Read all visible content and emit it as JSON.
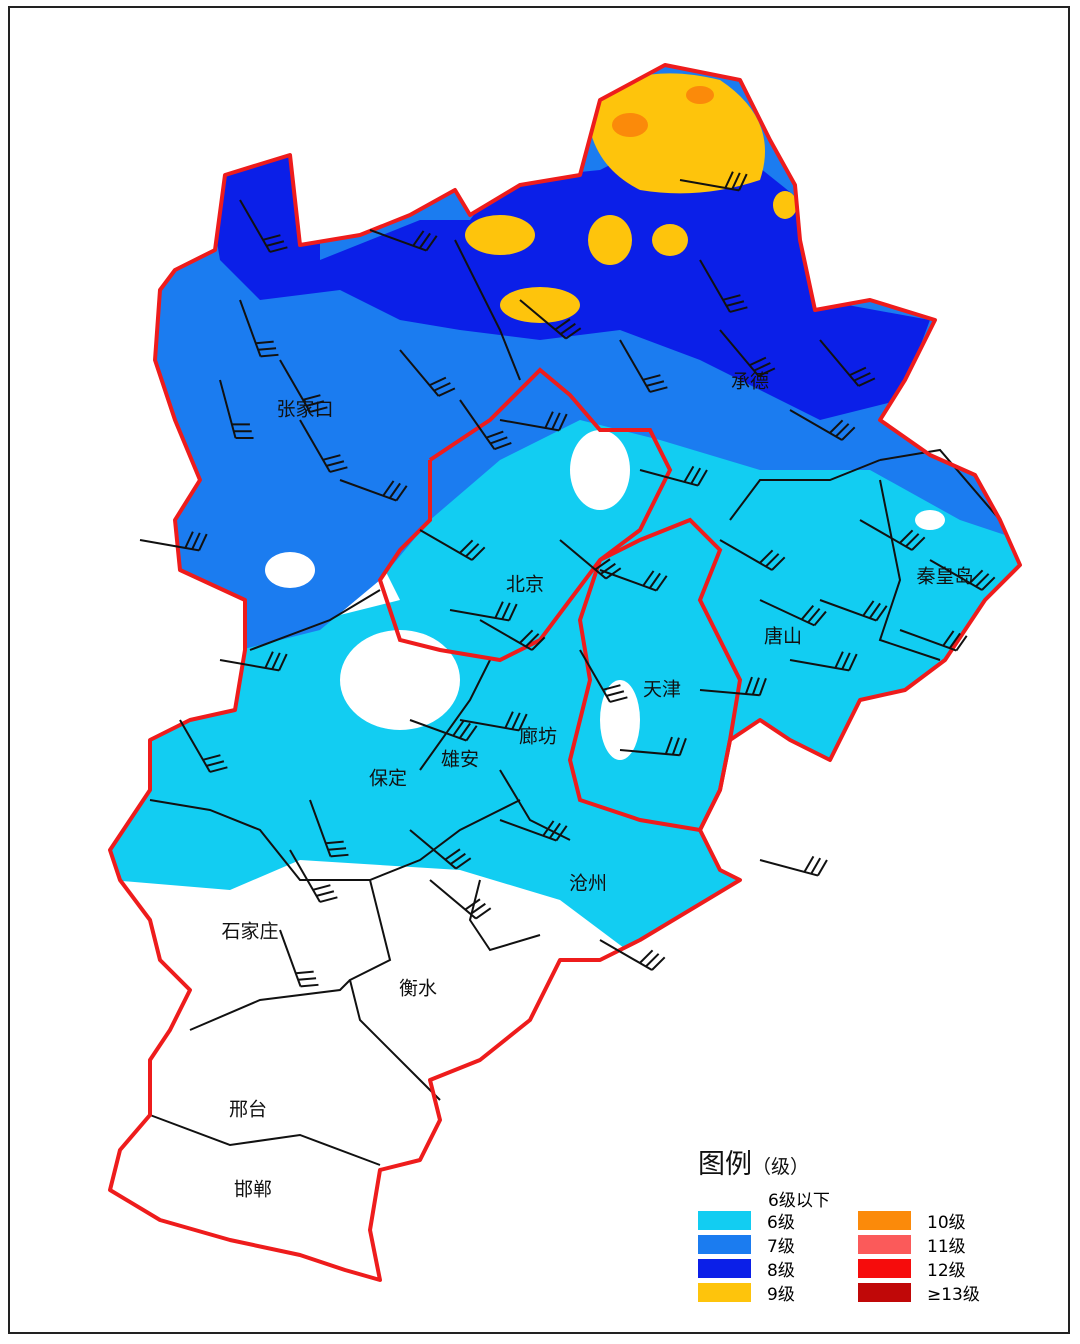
{
  "map": {
    "cities": [
      {
        "name": "张家口"
      },
      {
        "name": "承德"
      },
      {
        "name": "北京"
      },
      {
        "name": "秦皇岛"
      },
      {
        "name": "唐山"
      },
      {
        "name": "天津"
      },
      {
        "name": "廊坊"
      },
      {
        "name": "雄安"
      },
      {
        "name": "保定"
      },
      {
        "name": "沧州"
      },
      {
        "name": "石家庄"
      },
      {
        "name": "衡水"
      },
      {
        "name": "邢台"
      },
      {
        "name": "邯郸"
      }
    ],
    "boundary_color": "#ee1c1c"
  },
  "legend": {
    "title": "图例",
    "unit": "（级）",
    "below_label": "6级以下",
    "items": [
      {
        "label": "6级",
        "color": "#12cdf2"
      },
      {
        "label": "7级",
        "color": "#1b7cf0"
      },
      {
        "label": "8级",
        "color": "#0b1fe8"
      },
      {
        "label": "9级",
        "color": "#fec40c"
      },
      {
        "label": "10级",
        "color": "#fb8a0a"
      },
      {
        "label": "11级",
        "color": "#fb5a5a"
      },
      {
        "label": "12级",
        "color": "#f60c0c"
      },
      {
        "label": "≥13级",
        "color": "#c00808"
      }
    ]
  }
}
